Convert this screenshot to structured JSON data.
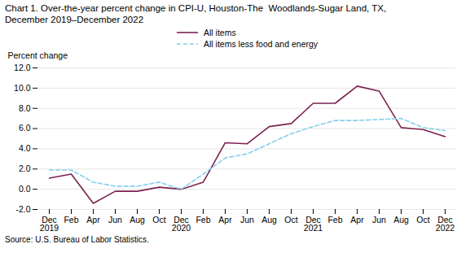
{
  "chart_data": {
    "type": "line",
    "title": "Chart 1. Over-the-year percent change in CPI-U, Houston-The  Woodlands-Sugar Land, TX,",
    "subtitle": "December 2019–December 2022",
    "ylabel": "Percent change",
    "source": "Source: U.S. Bureau of Labor Statistics.",
    "categories": [
      "Dec\n2019",
      "Feb",
      "Apr",
      "Jun",
      "Aug",
      "Oct",
      "Dec\n2020",
      "Feb",
      "Apr",
      "Jun",
      "Aug",
      "Oct",
      "Dec\n2021",
      "Feb",
      "Apr",
      "Jun",
      "Aug",
      "Oct",
      "Dec\n2022"
    ],
    "series": [
      {
        "name": "All items",
        "color": "#7B2150",
        "line_style": "solid",
        "values": [
          1.1,
          1.5,
          -1.4,
          -0.2,
          -0.2,
          0.2,
          0.0,
          0.7,
          4.6,
          4.5,
          6.2,
          6.5,
          8.5,
          8.5,
          10.2,
          9.7,
          6.1,
          5.9,
          5.2
        ]
      },
      {
        "name": "All items less food and energy",
        "color": "#87CEEB",
        "line_style": "dashed",
        "values": [
          1.9,
          1.9,
          0.7,
          0.3,
          0.3,
          0.7,
          0.0,
          1.5,
          3.1,
          3.5,
          4.5,
          5.5,
          6.2,
          6.8,
          6.8,
          6.9,
          7.0,
          6.1,
          5.8
        ]
      }
    ],
    "ylim": [
      -2.0,
      12.0
    ],
    "yticks": [
      {
        "value": -2.0,
        "label": "-2.0"
      },
      {
        "value": 0.0,
        "label": "0.0"
      },
      {
        "value": 2.0,
        "label": "2.0"
      },
      {
        "value": 4.0,
        "label": "4.0"
      },
      {
        "value": 6.0,
        "label": "6.0"
      },
      {
        "value": 8.0,
        "label": "8.0"
      },
      {
        "value": 10.0,
        "label": "10.0"
      },
      {
        "value": 12.0,
        "label": "12.0"
      }
    ],
    "grid": true,
    "legend": "top"
  }
}
